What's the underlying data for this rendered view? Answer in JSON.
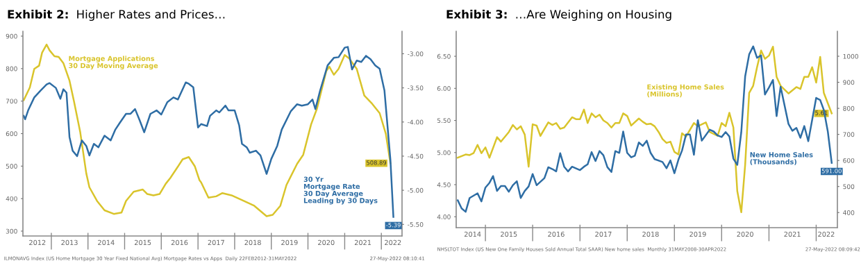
{
  "chart_data": [
    {
      "type": "line",
      "title": "Exhibit 2:  Higher Rates and Prices…",
      "legend": false,
      "grid": false,
      "annotations": [
        "ILMONAVG Index (US Home Mortgage 30 Year Fixed National Avg) Mortgage Rates vs Apps  Daily 22FEB2012-31MAY2022",
        "27-May-2022 08:10:41"
      ],
      "xlim": [
        "2012-03-24",
        "2022-07-26"
      ],
      "xticks": [
        {
          "value": "2012-08-15",
          "label": "2012"
        },
        {
          "value": "2013-01-01",
          "label": null
        },
        {
          "value": "2013-07-01",
          "label": "2013"
        },
        {
          "value": "2014-01-01",
          "label": null
        },
        {
          "value": "2014-07-01",
          "label": "2014"
        },
        {
          "value": "2015-01-01",
          "label": null
        },
        {
          "value": "2015-07-01",
          "label": "2015"
        },
        {
          "value": "2016-01-01",
          "label": null
        },
        {
          "value": "2016-07-01",
          "label": "2016"
        },
        {
          "value": "2017-01-01",
          "label": null
        },
        {
          "value": "2017-07-01",
          "label": "2017"
        },
        {
          "value": "2018-01-01",
          "label": null
        },
        {
          "value": "2018-07-01",
          "label": "2018"
        },
        {
          "value": "2019-01-01",
          "label": null
        },
        {
          "value": "2019-07-01",
          "label": "2019"
        },
        {
          "value": "2020-01-01",
          "label": null
        },
        {
          "value": "2020-07-01",
          "label": "2020"
        },
        {
          "value": "2021-01-01",
          "label": null
        },
        {
          "value": "2021-07-01",
          "label": "2021"
        },
        {
          "value": "2022-01-01",
          "label": null
        },
        {
          "value": "2022-04-26",
          "label": "2022"
        }
      ],
      "ylim": [
        285,
        915
      ],
      "yticks": [
        300,
        400,
        500,
        600,
        700,
        800,
        900
      ],
      "y2lim": [
        -5.67,
        -2.67
      ],
      "y2ticks": [
        {
          "value": -3,
          "label": "-3.00"
        },
        {
          "value": -3.5,
          "label": "-3.50"
        },
        {
          "value": -4,
          "label": "-4.00"
        },
        {
          "value": -4.5,
          "label": "-4.50"
        },
        {
          "value": -5,
          "label": "-5.00"
        },
        {
          "value": -5.5,
          "label": "-5.50"
        }
      ],
      "series": [
        {
          "name": "Mortgage Applications\n30 Day Moving Average",
          "color": "#d9c42b",
          "type": "line",
          "x": [
            "2012-04-01",
            "2012-06-01",
            "2012-07-15",
            "2012-09-01",
            "2012-10-01",
            "2012-11-15",
            "2012-12-15",
            "2013-02-01",
            "2013-03-15",
            "2013-05-01",
            "2013-07-01",
            "2013-08-15",
            "2013-10-15",
            "2013-12-15",
            "2014-01-15",
            "2014-04-01",
            "2014-06-15",
            "2014-09-15",
            "2014-12-01",
            "2015-01-15",
            "2015-04-01",
            "2015-07-01",
            "2015-08-15",
            "2015-10-15",
            "2015-12-15",
            "2016-02-15",
            "2016-04-01",
            "2016-06-01",
            "2016-08-01",
            "2016-10-01",
            "2016-12-01",
            "2017-01-15",
            "2017-02-01",
            "2017-04-15",
            "2017-07-01",
            "2017-09-01",
            "2017-12-01",
            "2018-04-01",
            "2018-07-15",
            "2018-11-15",
            "2019-01-15",
            "2019-04-01",
            "2019-06-01",
            "2019-09-15",
            "2019-11-15",
            "2020-02-01",
            "2020-04-01",
            "2020-07-01",
            "2020-08-01",
            "2020-09-15",
            "2020-11-01",
            "2021-01-01",
            "2021-02-15",
            "2021-05-01",
            "2021-07-15",
            "2021-10-01",
            "2021-12-15",
            "2022-02-15",
            "2022-04-01"
          ],
          "values": [
            703,
            742,
            799,
            809,
            849,
            874,
            856,
            838,
            836,
            817,
            763,
            699,
            606,
            478,
            435,
            393,
            364,
            353,
            357,
            393,
            421,
            428,
            414,
            410,
            414,
            446,
            464,
            492,
            521,
            528,
            499,
            457,
            450,
            403,
            407,
            417,
            410,
            393,
            378,
            346,
            350,
            378,
            442,
            507,
            535,
            628,
            678,
            792,
            806,
            781,
            799,
            842,
            831,
            799,
            717,
            692,
            663,
            599,
            508.89
          ],
          "value_labels": [
            null,
            null,
            null,
            null,
            null,
            null,
            null,
            null,
            null,
            null,
            null,
            null,
            null,
            null,
            null,
            null,
            null,
            null,
            null,
            null,
            null,
            null,
            null,
            null,
            null,
            null,
            null,
            null,
            null,
            null,
            null,
            null,
            null,
            null,
            null,
            null,
            null,
            null,
            null,
            null,
            null,
            null,
            null,
            null,
            null,
            null,
            null,
            null,
            null,
            null,
            null,
            null,
            null,
            null,
            null,
            null,
            null,
            null,
            "508.89"
          ]
        },
        {
          "name": "30 Yr\nMortgage Rate\n30 Day Average\nLeading by 30 Days",
          "color": "#2e6da4",
          "type": "line",
          "axis": "y2",
          "x": [
            "2012-04-01",
            "2012-04-15",
            "2012-05-15",
            "2012-07-15",
            "2012-09-15",
            "2012-11-15",
            "2012-12-15",
            "2013-02-15",
            "2013-04-01",
            "2013-05-01",
            "2013-06-01",
            "2013-07-01",
            "2013-08-01",
            "2013-09-15",
            "2013-11-01",
            "2013-12-15",
            "2014-01-15",
            "2014-03-01",
            "2014-04-15",
            "2014-06-15",
            "2014-08-15",
            "2014-10-01",
            "2014-11-15",
            "2015-01-15",
            "2015-03-01",
            "2015-04-15",
            "2015-06-01",
            "2015-07-15",
            "2015-09-15",
            "2015-11-15",
            "2016-01-01",
            "2016-03-01",
            "2016-05-01",
            "2016-06-15",
            "2016-09-01",
            "2016-10-01",
            "2016-11-15",
            "2017-01-01",
            "2017-02-01",
            "2017-04-01",
            "2017-05-01",
            "2017-07-01",
            "2017-08-01",
            "2017-10-01",
            "2017-11-01",
            "2018-01-01",
            "2018-02-15",
            "2018-03-15",
            "2018-05-01",
            "2018-06-01",
            "2018-08-01",
            "2018-09-15",
            "2018-11-15",
            "2019-01-01",
            "2019-03-01",
            "2019-04-15",
            "2019-07-15",
            "2019-09-15",
            "2019-11-01",
            "2020-01-01",
            "2020-02-15",
            "2020-03-15",
            "2020-05-01",
            "2020-07-15",
            "2020-09-15",
            "2020-11-01",
            "2021-01-01",
            "2021-02-01",
            "2021-03-15",
            "2021-05-01",
            "2021-06-15",
            "2021-08-01",
            "2021-09-15",
            "2021-11-01",
            "2021-12-15",
            "2022-02-01",
            "2022-04-01",
            "2022-05-01"
          ],
          "values": [
            -3.91,
            -3.96,
            -3.83,
            -3.64,
            -3.54,
            -3.45,
            -3.43,
            -3.5,
            -3.66,
            -3.52,
            -3.57,
            -4.22,
            -4.42,
            -4.5,
            -4.27,
            -4.35,
            -4.49,
            -4.32,
            -4.37,
            -4.2,
            -4.27,
            -4.11,
            -4.01,
            -3.88,
            -3.88,
            -3.81,
            -3.98,
            -4.15,
            -3.88,
            -3.83,
            -3.89,
            -3.71,
            -3.64,
            -3.67,
            -3.42,
            -3.44,
            -3.49,
            -4.08,
            -4.03,
            -4.06,
            -3.91,
            -3.83,
            -3.86,
            -3.76,
            -3.83,
            -3.83,
            -4.05,
            -4.32,
            -4.37,
            -4.45,
            -4.42,
            -4.49,
            -4.76,
            -4.54,
            -4.35,
            -4.11,
            -3.84,
            -3.74,
            -3.76,
            -3.74,
            -3.67,
            -3.81,
            -3.54,
            -3.17,
            -3.06,
            -3.05,
            -2.91,
            -2.9,
            -3.23,
            -3.1,
            -3.12,
            -3.03,
            -3.08,
            -3.17,
            -3.22,
            -3.54,
            -4.55,
            -5.39
          ],
          "value_labels": [
            null,
            null,
            null,
            null,
            null,
            null,
            null,
            null,
            null,
            null,
            null,
            null,
            null,
            null,
            null,
            null,
            null,
            null,
            null,
            null,
            null,
            null,
            null,
            null,
            null,
            null,
            null,
            null,
            null,
            null,
            null,
            null,
            null,
            null,
            null,
            null,
            null,
            null,
            null,
            null,
            null,
            null,
            null,
            null,
            null,
            null,
            null,
            null,
            null,
            null,
            null,
            null,
            null,
            null,
            null,
            null,
            null,
            null,
            null,
            null,
            null,
            null,
            null,
            null,
            null,
            null,
            null,
            null,
            null,
            null,
            null,
            null,
            null,
            null,
            null,
            null,
            null,
            "-5.39"
          ]
        }
      ]
    },
    {
      "type": "line",
      "title": "Exhibit 3:  …Are Weighing on Housing",
      "legend": false,
      "grid": false,
      "annotations": [
        "NHSLTOT Index (US New One Family Houses Sold Annual Total SAAR) New home sales  Monthly 31MAY2008-30APR2022",
        "27-May-2022 08:09:42"
      ],
      "xlim": [
        "2014-05-20",
        "2022-06-14"
      ],
      "xticks": [
        {
          "value": "2014-09-24",
          "label": "2014"
        },
        {
          "value": "2015-01-01",
          "label": null
        },
        {
          "value": "2015-07-01",
          "label": "2015"
        },
        {
          "value": "2016-01-01",
          "label": null
        },
        {
          "value": "2016-07-01",
          "label": "2016"
        },
        {
          "value": "2017-01-01",
          "label": null
        },
        {
          "value": "2017-07-01",
          "label": "2017"
        },
        {
          "value": "2018-01-01",
          "label": null
        },
        {
          "value": "2018-07-01",
          "label": "2018"
        },
        {
          "value": "2019-01-01",
          "label": null
        },
        {
          "value": "2019-07-01",
          "label": "2019"
        },
        {
          "value": "2020-01-01",
          "label": null
        },
        {
          "value": "2020-07-01",
          "label": "2020"
        },
        {
          "value": "2021-01-01",
          "label": null
        },
        {
          "value": "2021-07-01",
          "label": "2021"
        },
        {
          "value": "2022-01-01",
          "label": null
        },
        {
          "value": "2022-03-20",
          "label": "2022"
        }
      ],
      "ylim": [
        3.83,
        6.89
      ],
      "yticks": [
        {
          "value": 4,
          "label": "4.00"
        },
        {
          "value": 4.5,
          "label": "4.50"
        },
        {
          "value": 5,
          "label": "5.00"
        },
        {
          "value": 5.5,
          "label": "5.50"
        },
        {
          "value": 6,
          "label": "6.00"
        },
        {
          "value": 6.5,
          "label": "6.50"
        }
      ],
      "y2lim": [
        342,
        1096
      ],
      "y2ticks": [
        400,
        500,
        600,
        700,
        800,
        900,
        1000
      ],
      "series": [
        {
          "name": "Existing Home Sales\n(Millions)",
          "color": "#d9c42b",
          "type": "line",
          "x": [
            "2014-06",
            "2014-08",
            "2014-09",
            "2014-10",
            "2014-11",
            "2014-12",
            "2015-01",
            "2015-02",
            "2015-04",
            "2015-05",
            "2015-07",
            "2015-08",
            "2015-09",
            "2015-10",
            "2015-11",
            "2015-12",
            "2016-01",
            "2016-02",
            "2016-03",
            "2016-05",
            "2016-06",
            "2016-07",
            "2016-08",
            "2016-09",
            "2016-11",
            "2016-12",
            "2017-01",
            "2017-02",
            "2017-03",
            "2017-04",
            "2017-05",
            "2017-06",
            "2017-07",
            "2017-08",
            "2017-09",
            "2017-10",
            "2017-11",
            "2017-12",
            "2018-01",
            "2018-02",
            "2018-04",
            "2018-05",
            "2018-06",
            "2018-07",
            "2018-08",
            "2018-09",
            "2018-10",
            "2018-11",
            "2018-12",
            "2019-01",
            "2019-02",
            "2019-03",
            "2019-04",
            "2019-06",
            "2019-07",
            "2019-09",
            "2019-10",
            "2019-12",
            "2020-01",
            "2020-02",
            "2020-03",
            "2020-04",
            "2020-05",
            "2020-06",
            "2020-07",
            "2020-08",
            "2020-09",
            "2020-10",
            "2020-11",
            "2020-12",
            "2021-01",
            "2021-02",
            "2021-03",
            "2021-04",
            "2021-06",
            "2021-08",
            "2021-09",
            "2021-10",
            "2021-11",
            "2021-12",
            "2022-01",
            "2022-02",
            "2022-03",
            "2022-05"
          ],
          "values": [
            4.92,
            4.97,
            4.96,
            4.99,
            5.12,
            4.99,
            5.08,
            4.92,
            5.24,
            5.17,
            5.32,
            5.43,
            5.36,
            5.41,
            5.28,
            4.78,
            5.44,
            5.42,
            5.26,
            5.47,
            5.43,
            5.46,
            5.37,
            5.39,
            5.55,
            5.52,
            5.52,
            5.67,
            5.46,
            5.61,
            5.55,
            5.59,
            5.5,
            5.46,
            5.39,
            5.46,
            5.46,
            5.61,
            5.57,
            5.42,
            5.53,
            5.48,
            5.44,
            5.45,
            5.41,
            5.32,
            5.21,
            5.15,
            5.17,
            5.01,
            4.97,
            5.3,
            5.25,
            5.46,
            5.41,
            5.47,
            5.32,
            5.26,
            5.46,
            5.41,
            5.62,
            5.39,
            4.4,
            4.07,
            4.81,
            5.93,
            6.04,
            6.33,
            6.59,
            6.46,
            6.51,
            6.65,
            6.18,
            6.04,
            5.92,
            6.02,
            5.99,
            6.18,
            6.18,
            6.33,
            6.09,
            6.49,
            5.93,
            5.61
          ],
          "value_labels": [
            null,
            null,
            null,
            null,
            null,
            null,
            null,
            null,
            null,
            null,
            null,
            null,
            null,
            null,
            null,
            null,
            null,
            null,
            null,
            null,
            null,
            null,
            null,
            null,
            null,
            null,
            null,
            null,
            null,
            null,
            null,
            null,
            null,
            null,
            null,
            null,
            null,
            null,
            null,
            null,
            null,
            null,
            null,
            null,
            null,
            null,
            null,
            null,
            null,
            null,
            null,
            null,
            null,
            null,
            null,
            null,
            null,
            null,
            null,
            null,
            null,
            null,
            null,
            null,
            null,
            null,
            null,
            null,
            null,
            null,
            null,
            null,
            null,
            null,
            null,
            null,
            null,
            null,
            null,
            null,
            null,
            null,
            null,
            "5.61"
          ]
        },
        {
          "name": "New Home Sales\n(Thousands)",
          "color": "#2e6da4",
          "type": "line",
          "axis": "y2",
          "x": [
            "2014-06",
            "2014-07",
            "2014-08",
            "2014-09",
            "2014-11",
            "2014-12",
            "2015-01",
            "2015-02",
            "2015-03",
            "2015-04",
            "2015-05",
            "2015-06",
            "2015-07",
            "2015-08",
            "2015-09",
            "2015-10",
            "2015-11",
            "2015-12",
            "2016-01",
            "2016-02",
            "2016-04",
            "2016-05",
            "2016-06",
            "2016-07",
            "2016-08",
            "2016-09",
            "2016-10",
            "2016-11",
            "2017-01",
            "2017-02",
            "2017-03",
            "2017-04",
            "2017-05",
            "2017-06",
            "2017-07",
            "2017-08",
            "2017-09",
            "2017-10",
            "2017-11",
            "2017-12",
            "2018-01",
            "2018-02",
            "2018-03",
            "2018-04",
            "2018-05",
            "2018-06",
            "2018-07",
            "2018-08",
            "2018-10",
            "2018-11",
            "2018-12",
            "2019-01",
            "2019-02",
            "2019-03",
            "2019-04",
            "2019-05",
            "2019-06",
            "2019-07",
            "2019-08",
            "2019-10",
            "2019-11",
            "2019-12",
            "2020-01",
            "2020-02",
            "2020-03",
            "2020-04",
            "2020-05",
            "2020-06",
            "2020-07",
            "2020-08",
            "2020-09",
            "2020-10",
            "2020-11",
            "2020-12",
            "2021-01",
            "2021-02",
            "2021-03",
            "2021-04",
            "2021-06",
            "2021-07",
            "2021-08",
            "2021-09",
            "2021-10",
            "2021-11",
            "2022-01",
            "2022-02",
            "2022-03",
            "2022-04",
            "2022-05"
          ],
          "values": [
            447,
            416,
            403,
            456,
            474,
            443,
            496,
            514,
            540,
            483,
            502,
            502,
            480,
            505,
            520,
            456,
            483,
            500,
            548,
            505,
            532,
            574,
            567,
            558,
            628,
            576,
            558,
            576,
            563,
            576,
            585,
            632,
            598,
            636,
            620,
            574,
            556,
            636,
            629,
            711,
            629,
            612,
            618,
            669,
            656,
            676,
            629,
            605,
            594,
            570,
            600,
            551,
            603,
            638,
            700,
            700,
            622,
            754,
            676,
            718,
            711,
            696,
            690,
            709,
            692,
            607,
            583,
            709,
            923,
            1007,
            1038,
            994,
            1003,
            853,
            880,
            909,
            770,
            883,
            740,
            714,
            725,
            687,
            732,
            674,
            840,
            832,
            794,
            711,
            591
          ],
          "value_labels": [
            null,
            null,
            null,
            null,
            null,
            null,
            null,
            null,
            null,
            null,
            null,
            null,
            null,
            null,
            null,
            null,
            null,
            null,
            null,
            null,
            null,
            null,
            null,
            null,
            null,
            null,
            null,
            null,
            null,
            null,
            null,
            null,
            null,
            null,
            null,
            null,
            null,
            null,
            null,
            null,
            null,
            null,
            null,
            null,
            null,
            null,
            null,
            null,
            null,
            null,
            null,
            null,
            null,
            null,
            null,
            null,
            null,
            null,
            null,
            null,
            null,
            null,
            null,
            null,
            null,
            null,
            null,
            null,
            null,
            null,
            null,
            null,
            null,
            null,
            null,
            null,
            null,
            null,
            null,
            null,
            null,
            null,
            null,
            null,
            null,
            null,
            null,
            null,
            "591.00"
          ]
        }
      ]
    }
  ]
}
